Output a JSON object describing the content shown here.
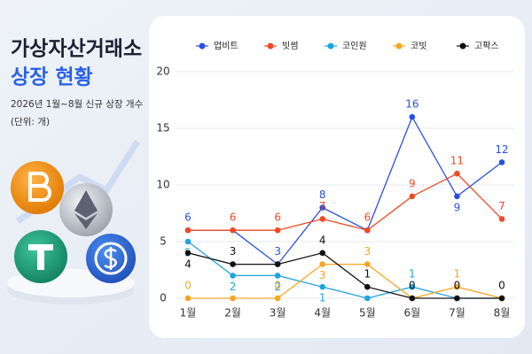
{
  "chart_data": {
    "type": "line",
    "title": "가상자산거래소",
    "title_highlight": "상장 현황",
    "subtitle": "2026년 1월~8월 신규 상장 개수",
    "unit_note": "(단위: 개)",
    "categories": [
      "1월",
      "2월",
      "3월",
      "4월",
      "5월",
      "6월",
      "7월",
      "8월"
    ],
    "series": [
      {
        "name": "업비트",
        "color": "#2a4fe0",
        "values": [
          6,
          6,
          3,
          8,
          6,
          16,
          9,
          12
        ],
        "value_labels": [
          "6",
          null,
          "3",
          "8",
          null,
          "16",
          "9",
          "12"
        ]
      },
      {
        "name": "빗썸",
        "color": "#f04a24",
        "values": [
          6,
          6,
          6,
          7,
          6,
          9,
          11,
          7
        ],
        "value_labels": [
          null,
          "6",
          "6",
          "7",
          "6",
          "9",
          "11",
          "7"
        ]
      },
      {
        "name": "코인원",
        "color": "#1fa3e0",
        "values": [
          5,
          2,
          2,
          1,
          0,
          1,
          0,
          0
        ],
        "value_labels": [
          "5",
          "2",
          "2",
          "1",
          null,
          "1",
          null,
          null
        ]
      },
      {
        "name": "코빗",
        "color": "#f5a623",
        "values": [
          0,
          0,
          0,
          3,
          3,
          0,
          1,
          0
        ],
        "value_labels": [
          "0",
          null,
          "0",
          "3",
          "3",
          null,
          "1",
          null
        ]
      },
      {
        "name": "고팍스",
        "color": "#111111",
        "values": [
          4,
          3,
          3,
          4,
          1,
          0,
          0,
          0
        ],
        "value_labels": [
          "4",
          "3",
          null,
          "4",
          "1",
          "0",
          "0",
          "0"
        ]
      }
    ],
    "ylim": [
      0,
      20
    ],
    "yticks": [
      0,
      5,
      10,
      15,
      20
    ],
    "grid": true,
    "legend": "top"
  }
}
